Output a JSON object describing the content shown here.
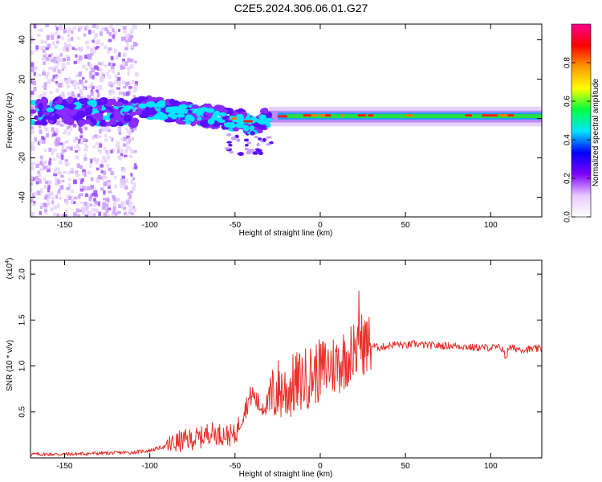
{
  "figure": {
    "title": "C2E5.2024.306.06.01.G27"
  },
  "chart_data": [
    {
      "type": "heatmap",
      "xlabel": "Height of straight line (km)",
      "ylabel": "Frequency (Hz)",
      "xlim": [
        -170,
        130
      ],
      "ylim": [
        -50,
        48
      ],
      "xticks": [
        -150,
        -100,
        -50,
        0,
        50,
        100
      ],
      "yticks": [
        -40,
        -20,
        0,
        20,
        40
      ],
      "colorbar": {
        "label": "Normalized spectral amplitude",
        "ticks": [
          "0.0",
          "0.2",
          "0.4",
          "0.6",
          "0.8"
        ],
        "range": [
          0,
          1
        ],
        "colors": [
          "#ffffff",
          "#e8c8ff",
          "#7c00ff",
          "#0000ff",
          "#00e5ff",
          "#00ff40",
          "#ffff00",
          "#ff9900",
          "#ff0000",
          "#ff0090"
        ]
      },
      "band_center_hz": [
        [
          -170,
          3
        ],
        [
          -150,
          4
        ],
        [
          -130,
          3
        ],
        [
          -110,
          3
        ],
        [
          -100,
          6
        ],
        [
          -90,
          4
        ],
        [
          -80,
          3
        ],
        [
          -70,
          2
        ],
        [
          -60,
          1
        ],
        [
          -50,
          -1
        ],
        [
          -40,
          -3
        ],
        [
          -30,
          0
        ],
        [
          -20,
          1
        ],
        [
          -10,
          1
        ],
        [
          0,
          1
        ],
        [
          20,
          1
        ],
        [
          50,
          1
        ],
        [
          80,
          1
        ],
        [
          100,
          1
        ],
        [
          130,
          1
        ]
      ],
      "grid": false
    },
    {
      "type": "line",
      "xlabel": "Height of straight line (km)",
      "ylabel": "SNR (10 * v/v)",
      "y_multiplier": "(x10",
      "y_multiplier_exp": "4",
      "xlim": [
        -170,
        130
      ],
      "ylim": [
        0,
        2.15
      ],
      "xticks": [
        -150,
        -100,
        -50,
        0,
        50,
        100
      ],
      "yticks": [
        "0.5",
        "1.0",
        "1.5",
        "2.0"
      ],
      "series": [
        {
          "color": "#e8302a",
          "x": [
            -170,
            -150,
            -130,
            -110,
            -100,
            -90,
            -80,
            -70,
            -65,
            -60,
            -55,
            -50,
            -45,
            -40,
            -35,
            -30,
            -25,
            -20,
            -15,
            -10,
            -5,
            0,
            5,
            10,
            15,
            20,
            22,
            25,
            30,
            35,
            40,
            45,
            50,
            55,
            60,
            70,
            80,
            90,
            100,
            105,
            108,
            110,
            120,
            130
          ],
          "y": [
            0.04,
            0.04,
            0.05,
            0.06,
            0.08,
            0.13,
            0.19,
            0.22,
            0.28,
            0.26,
            0.25,
            0.24,
            0.5,
            0.7,
            0.55,
            0.6,
            0.75,
            0.72,
            0.8,
            0.85,
            0.9,
            0.95,
            1.0,
            1.02,
            1.1,
            1.15,
            1.2,
            1.25,
            1.22,
            1.2,
            1.22,
            1.24,
            1.22,
            1.24,
            1.23,
            1.22,
            1.22,
            1.2,
            1.2,
            1.2,
            1.18,
            1.2,
            1.18,
            1.19
          ]
        }
      ],
      "grid": false
    }
  ]
}
